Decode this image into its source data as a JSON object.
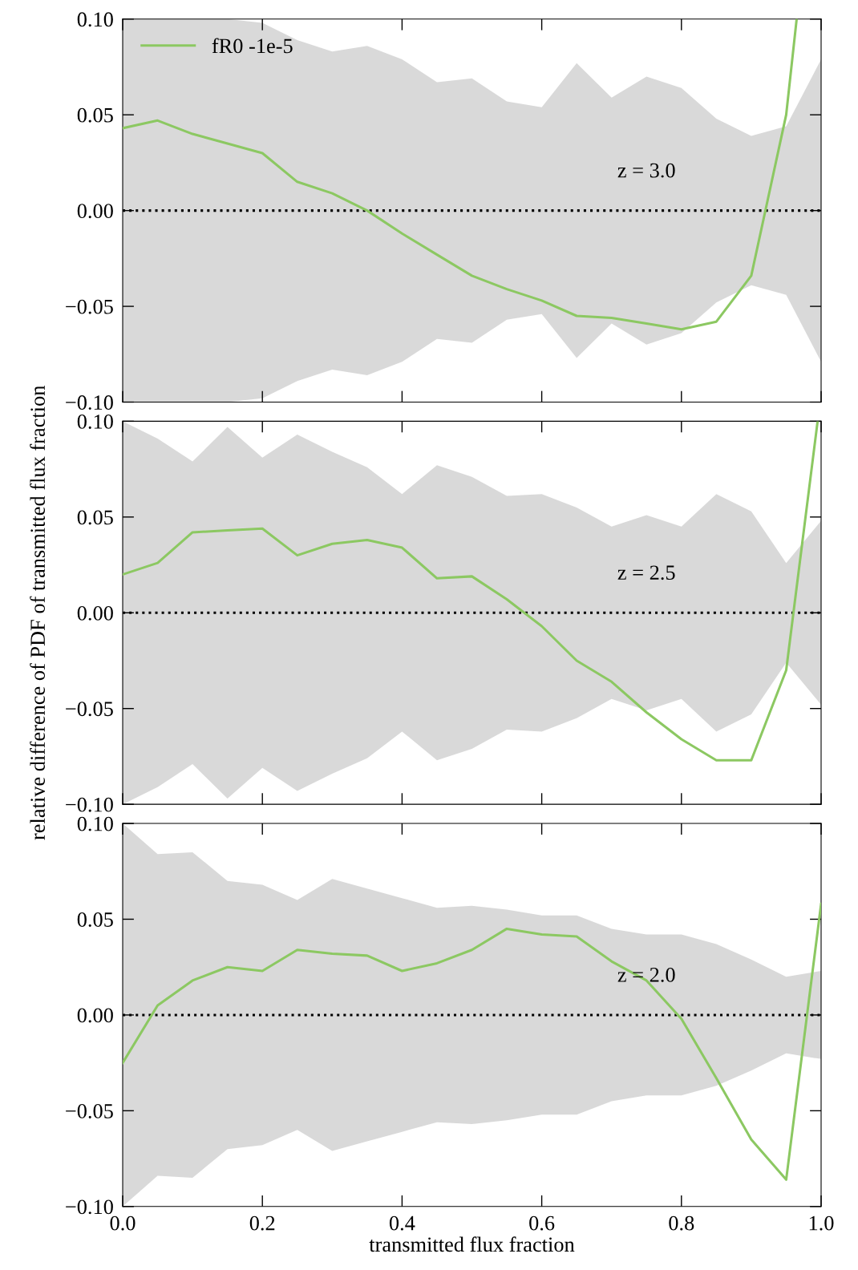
{
  "chart_data": [
    {
      "type": "line",
      "xlim": [
        0.0,
        1.0
      ],
      "ylim": [
        -0.1,
        0.1
      ],
      "tick_labels": "y",
      "grid": false,
      "legend": "top left",
      "xticks": [
        {
          "value": 0.0,
          "label": null
        },
        {
          "value": 0.2,
          "label": null
        },
        {
          "value": 0.4,
          "label": null
        },
        {
          "value": 0.6,
          "label": null
        },
        {
          "value": 0.8,
          "label": null
        },
        {
          "value": 1.0,
          "label": null
        }
      ],
      "yticks": [
        {
          "value": -0.1,
          "label": "−0.10"
        },
        {
          "value": -0.05,
          "label": "−0.05"
        },
        {
          "value": 0,
          "label": "0.00"
        },
        {
          "value": 0.05,
          "label": "0.05"
        },
        {
          "value": 0.1,
          "label": "0.10"
        }
      ],
      "annotations": [
        "z = 3.0"
      ],
      "series": [
        {
          "color": "#000000",
          "line_style": "dotted",
          "x": [
            0,
            0.05,
            0.1,
            0.15,
            0.2,
            0.25,
            0.3,
            0.35,
            0.4,
            0.45,
            0.5,
            0.55,
            0.6,
            0.65,
            0.7,
            0.75,
            0.8,
            0.85,
            0.9,
            0.95,
            1.0
          ],
          "values": [
            0,
            0,
            0,
            0,
            0,
            0,
            0,
            0,
            0,
            0,
            0,
            0,
            0,
            0,
            0,
            0,
            0,
            0,
            0,
            0,
            0
          ],
          "upper": [
            0.1,
            0.1,
            0.1,
            0.1,
            0.098,
            0.089,
            0.083,
            0.086,
            0.079,
            0.067,
            0.069,
            0.057,
            0.054,
            0.077,
            0.059,
            0.07,
            0.064,
            0.048,
            0.039,
            0.044,
            0.079
          ],
          "lower": [
            -0.1,
            -0.1,
            -0.1,
            -0.1,
            -0.098,
            -0.089,
            -0.083,
            -0.086,
            -0.079,
            -0.067,
            -0.069,
            -0.057,
            -0.054,
            -0.077,
            -0.059,
            -0.07,
            -0.064,
            -0.048,
            -0.039,
            -0.044,
            -0.079
          ]
        },
        {
          "name": "fR0 -1e-5",
          "color": "#8cc862",
          "line_style": "solid",
          "x": [
            0,
            0.05,
            0.1,
            0.15,
            0.2,
            0.25,
            0.3,
            0.35,
            0.4,
            0.45,
            0.5,
            0.55,
            0.6,
            0.65,
            0.7,
            0.75,
            0.8,
            0.85,
            0.9,
            0.95,
            0.965
          ],
          "values": [
            0.043,
            0.047,
            0.04,
            0.035,
            0.03,
            0.015,
            0.009,
            0.0,
            -0.012,
            -0.023,
            -0.034,
            -0.041,
            -0.047,
            -0.055,
            -0.056,
            -0.059,
            -0.062,
            -0.058,
            -0.034,
            0.05,
            0.1
          ]
        }
      ]
    },
    {
      "type": "line",
      "xlim": [
        0.0,
        1.0
      ],
      "ylim": [
        -0.1,
        0.1
      ],
      "tick_labels": "y",
      "grid": false,
      "ylabel": "relative difference of PDF of transmitted flux fraction",
      "xticks": [
        {
          "value": 0.0,
          "label": null
        },
        {
          "value": 0.2,
          "label": null
        },
        {
          "value": 0.4,
          "label": null
        },
        {
          "value": 0.6,
          "label": null
        },
        {
          "value": 0.8,
          "label": null
        },
        {
          "value": 1.0,
          "label": null
        }
      ],
      "yticks": [
        {
          "value": -0.1,
          "label": "−0.10"
        },
        {
          "value": -0.05,
          "label": "−0.05"
        },
        {
          "value": 0,
          "label": "0.00"
        },
        {
          "value": 0.05,
          "label": "0.05"
        },
        {
          "value": 0.1,
          "label": "0.10"
        }
      ],
      "annotations": [
        "z = 2.5"
      ],
      "series": [
        {
          "color": "#000000",
          "line_style": "dotted",
          "x": [
            0,
            0.05,
            0.1,
            0.15,
            0.2,
            0.25,
            0.3,
            0.35,
            0.4,
            0.45,
            0.5,
            0.55,
            0.6,
            0.65,
            0.7,
            0.75,
            0.8,
            0.85,
            0.9,
            0.95,
            1.0
          ],
          "values": [
            0,
            0,
            0,
            0,
            0,
            0,
            0,
            0,
            0,
            0,
            0,
            0,
            0,
            0,
            0,
            0,
            0,
            0,
            0,
            0,
            0
          ],
          "upper": [
            0.1,
            0.091,
            0.079,
            0.097,
            0.081,
            0.093,
            0.084,
            0.076,
            0.062,
            0.077,
            0.071,
            0.061,
            0.062,
            0.055,
            0.045,
            0.051,
            0.045,
            0.062,
            0.053,
            0.026,
            0.048
          ],
          "lower": [
            -0.1,
            -0.091,
            -0.079,
            -0.097,
            -0.081,
            -0.093,
            -0.084,
            -0.076,
            -0.062,
            -0.077,
            -0.071,
            -0.061,
            -0.062,
            -0.055,
            -0.045,
            -0.051,
            -0.045,
            -0.062,
            -0.053,
            -0.026,
            -0.048
          ]
        },
        {
          "color": "#8cc862",
          "line_style": "solid",
          "x": [
            0,
            0.05,
            0.1,
            0.15,
            0.2,
            0.25,
            0.3,
            0.35,
            0.4,
            0.45,
            0.5,
            0.55,
            0.6,
            0.65,
            0.7,
            0.75,
            0.8,
            0.85,
            0.9,
            0.95,
            0.995
          ],
          "values": [
            0.02,
            0.026,
            0.042,
            0.043,
            0.044,
            0.03,
            0.036,
            0.038,
            0.034,
            0.018,
            0.019,
            0.007,
            -0.007,
            -0.025,
            -0.036,
            -0.052,
            -0.066,
            -0.077,
            -0.077,
            -0.03,
            0.1
          ]
        }
      ]
    },
    {
      "type": "line",
      "xlim": [
        0.0,
        1.0
      ],
      "ylim": [
        -0.1,
        0.1
      ],
      "grid": false,
      "xlabel": "transmitted flux fraction",
      "xticks": [
        {
          "value": 0.0,
          "label": "0.0"
        },
        {
          "value": 0.2,
          "label": "0.2"
        },
        {
          "value": 0.4,
          "label": "0.4"
        },
        {
          "value": 0.6,
          "label": "0.6"
        },
        {
          "value": 0.8,
          "label": "0.8"
        },
        {
          "value": 1.0,
          "label": "1.0"
        }
      ],
      "yticks": [
        {
          "value": -0.1,
          "label": "−0.10"
        },
        {
          "value": -0.05,
          "label": "−0.05"
        },
        {
          "value": 0,
          "label": "0.00"
        },
        {
          "value": 0.05,
          "label": "0.05"
        },
        {
          "value": 0.1,
          "label": "0.10"
        }
      ],
      "annotations": [
        "z = 2.0"
      ],
      "series": [
        {
          "color": "#000000",
          "line_style": "dotted",
          "x": [
            0,
            0.05,
            0.1,
            0.15,
            0.2,
            0.25,
            0.3,
            0.35,
            0.4,
            0.45,
            0.5,
            0.55,
            0.6,
            0.65,
            0.7,
            0.75,
            0.8,
            0.85,
            0.9,
            0.95,
            1.0
          ],
          "values": [
            0,
            0,
            0,
            0,
            0,
            0,
            0,
            0,
            0,
            0,
            0,
            0,
            0,
            0,
            0,
            0,
            0,
            0,
            0,
            0,
            0
          ],
          "upper": [
            0.1,
            0.084,
            0.085,
            0.07,
            0.068,
            0.06,
            0.071,
            0.066,
            0.061,
            0.056,
            0.057,
            0.055,
            0.052,
            0.052,
            0.045,
            0.042,
            0.042,
            0.037,
            0.029,
            0.02,
            0.023
          ],
          "lower": [
            -0.1,
            -0.084,
            -0.085,
            -0.07,
            -0.068,
            -0.06,
            -0.071,
            -0.066,
            -0.061,
            -0.056,
            -0.057,
            -0.055,
            -0.052,
            -0.052,
            -0.045,
            -0.042,
            -0.042,
            -0.037,
            -0.029,
            -0.02,
            -0.023
          ]
        },
        {
          "color": "#8cc862",
          "line_style": "solid",
          "x": [
            0,
            0.05,
            0.1,
            0.15,
            0.2,
            0.25,
            0.3,
            0.35,
            0.4,
            0.45,
            0.5,
            0.55,
            0.6,
            0.65,
            0.7,
            0.75,
            0.8,
            0.85,
            0.9,
            0.95,
            1.0
          ],
          "values": [
            -0.025,
            0.005,
            0.018,
            0.025,
            0.023,
            0.034,
            0.032,
            0.031,
            0.023,
            0.027,
            0.034,
            0.045,
            0.042,
            0.041,
            0.028,
            0.018,
            -0.002,
            -0.033,
            -0.065,
            -0.086,
            0.058
          ]
        }
      ]
    }
  ]
}
